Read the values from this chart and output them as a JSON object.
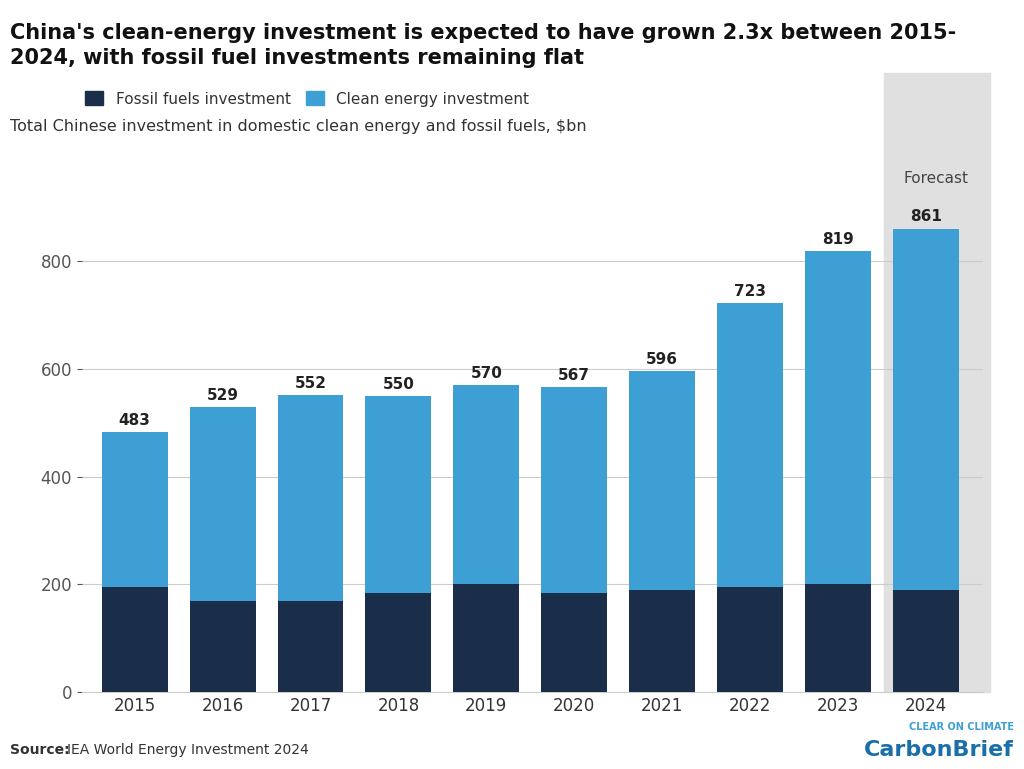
{
  "years": [
    2015,
    2016,
    2017,
    2018,
    2019,
    2020,
    2021,
    2022,
    2023,
    2024
  ],
  "totals": [
    483,
    529,
    552,
    550,
    570,
    567,
    596,
    723,
    819,
    861
  ],
  "fossil": [
    195,
    170,
    170,
    185,
    200,
    185,
    190,
    195,
    200,
    190
  ],
  "fossil_color": "#1a2e4a",
  "clean_color": "#3d9fd3",
  "forecast_bg": "#e0e0e0",
  "subtitle": "Total Chinese investment in domestic clean energy and fossil fuels, $bn",
  "source": "Source: IEA World Energy Investment 2024",
  "legend_fossil": "Fossil fuels investment",
  "legend_clean": "Clean energy investment",
  "forecast_label": "Forecast",
  "ylim": [
    0,
    1000
  ],
  "yticks": [
    0,
    200,
    400,
    600,
    800
  ],
  "bar_width": 0.75,
  "title": "China's clean-energy investment is expected to have grown 2.3x between 2015-\n2024, with fossil fuel investments remaining flat",
  "carbonbrief_color": "#1a6fa8",
  "carbonbrief_sub_color": "#3d9fd3"
}
